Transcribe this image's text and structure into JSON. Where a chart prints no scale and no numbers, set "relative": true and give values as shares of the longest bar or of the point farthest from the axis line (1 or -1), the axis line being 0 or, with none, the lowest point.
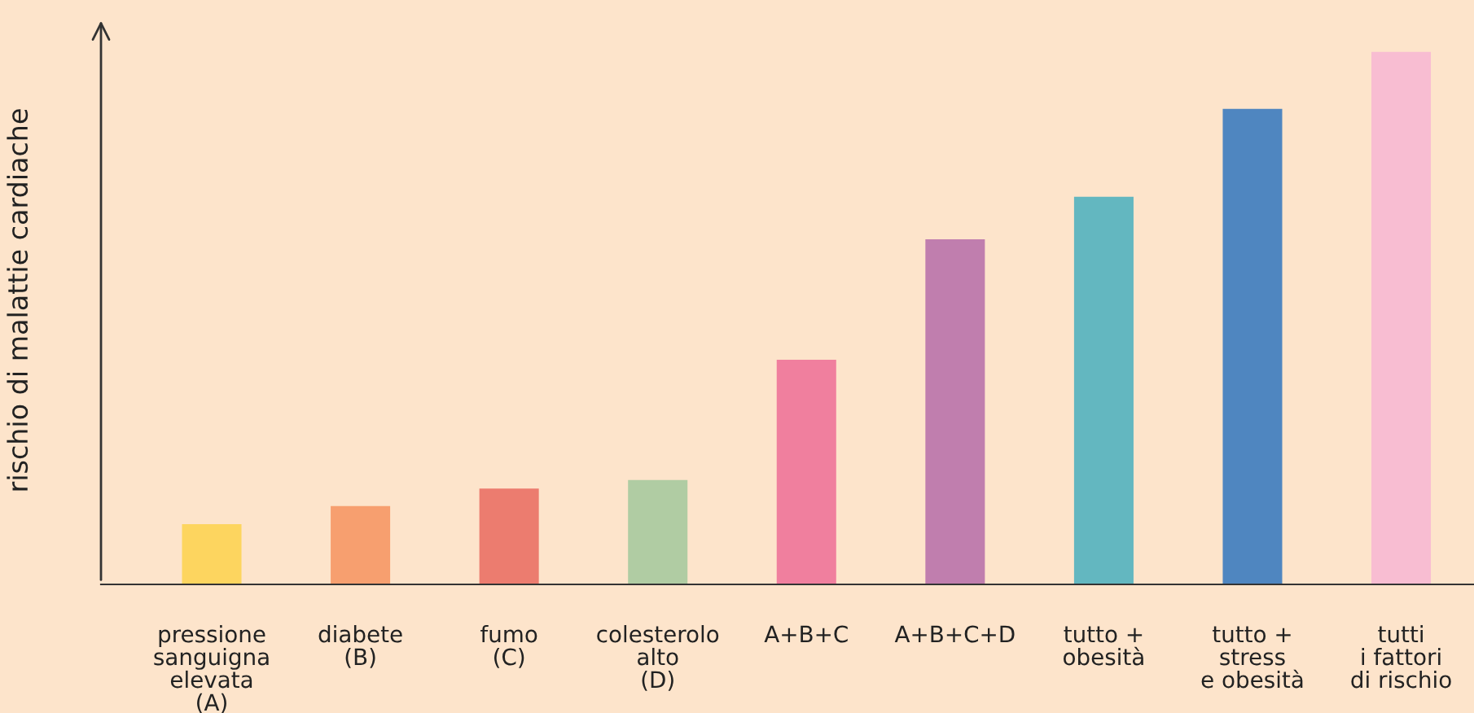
{
  "chart_data": {
    "type": "bar",
    "relative": true,
    "ylabel": "rischio di malattie cardiache",
    "categories": [
      "pressione\nsanguigna\nelevata\n(A)",
      "diabete\n(B)",
      "fumo\n(C)",
      "colesterolo\nalto\n(D)",
      "A+B+C",
      "A+B+C+D",
      "tutto +\nobesità",
      "tutto +\nstress\ne obesità",
      "tutti\ni fattori\ndi rischio"
    ],
    "values": [
      0.113,
      0.147,
      0.18,
      0.196,
      0.422,
      0.648,
      0.728,
      0.893,
      1
    ],
    "colors": [
      "#fdd55f",
      "#f79f6f",
      "#ec7c6f",
      "#b0cca3",
      "#f07f9e",
      "#c07eae",
      "#63b7c0",
      "#4f86c0",
      "#f8bdd2"
    ],
    "grid": false,
    "legend": false
  }
}
